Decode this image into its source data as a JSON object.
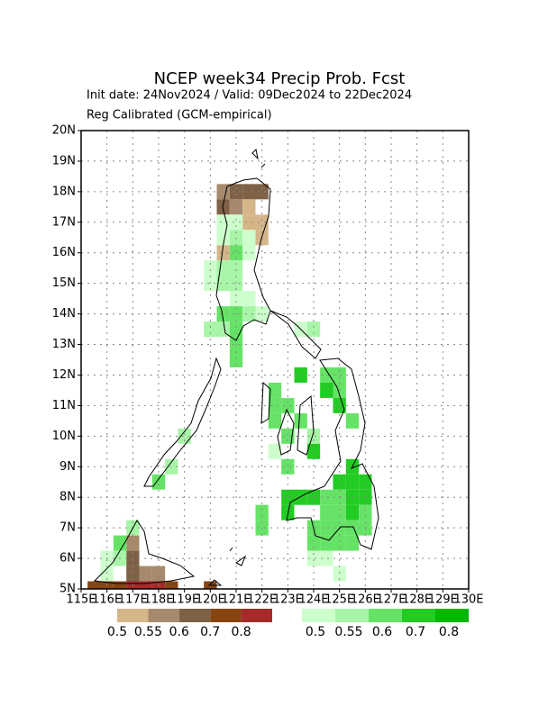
{
  "title": "NCEP week34 Precip Prob. Fcst",
  "subtitle": "Init date: 24Nov2024 / Valid: 09Dec2024 to 22Dec2024",
  "note": "Reg Calibrated (GCM-empirical)",
  "map": {
    "xlim": [
      115,
      130
    ],
    "ylim": [
      5,
      20
    ],
    "xticks": [
      {
        "value": 115,
        "label": "115E"
      },
      {
        "value": 116,
        "label": "116E"
      },
      {
        "value": 117,
        "label": "117E"
      },
      {
        "value": 118,
        "label": "118E"
      },
      {
        "value": 119,
        "label": "119E"
      },
      {
        "value": 120,
        "label": "120E"
      },
      {
        "value": 121,
        "label": "121E"
      },
      {
        "value": 122,
        "label": "122E"
      },
      {
        "value": 123,
        "label": "123E"
      },
      {
        "value": 124,
        "label": "124E"
      },
      {
        "value": 125,
        "label": "125E"
      },
      {
        "value": 126,
        "label": "126E"
      },
      {
        "value": 127,
        "label": "127E"
      },
      {
        "value": 128,
        "label": "128E"
      },
      {
        "value": 129,
        "label": "129E"
      },
      {
        "value": 130,
        "label": "130E"
      }
    ],
    "yticks": [
      {
        "value": 5,
        "label": "5N"
      },
      {
        "value": 6,
        "label": "6N"
      },
      {
        "value": 7,
        "label": "7N"
      },
      {
        "value": 8,
        "label": "8N"
      },
      {
        "value": 9,
        "label": "9N"
      },
      {
        "value": 10,
        "label": "10N"
      },
      {
        "value": 11,
        "label": "11N"
      },
      {
        "value": 12,
        "label": "12N"
      },
      {
        "value": 13,
        "label": "13N"
      },
      {
        "value": 14,
        "label": "14N"
      },
      {
        "value": 15,
        "label": "15N"
      },
      {
        "value": 16,
        "label": "16N"
      },
      {
        "value": 17,
        "label": "17N"
      },
      {
        "value": 18,
        "label": "18N"
      },
      {
        "value": 19,
        "label": "19N"
      },
      {
        "value": 20,
        "label": "20N"
      }
    ],
    "grid": true,
    "below_cells": [
      [
        120.5,
        18,
        0.57
      ],
      [
        121,
        18,
        0.62
      ],
      [
        121.5,
        18,
        0.62
      ],
      [
        122,
        18,
        0.62
      ],
      [
        120.5,
        17.5,
        0.62
      ],
      [
        121,
        17.5,
        0.57
      ],
      [
        121.5,
        17.5,
        0.52
      ],
      [
        121.5,
        17,
        0.52
      ],
      [
        122,
        17,
        0.52
      ],
      [
        122,
        16.5,
        0.52
      ],
      [
        120.5,
        16,
        0.52
      ],
      [
        117,
        6.5,
        0.57
      ],
      [
        117,
        6,
        0.62
      ],
      [
        117,
        5.5,
        0.62
      ],
      [
        117.5,
        5.5,
        0.57
      ],
      [
        118,
        5.5,
        0.57
      ],
      [
        115.5,
        5,
        0.72
      ],
      [
        116,
        5,
        0.72
      ],
      [
        116.5,
        5,
        0.72
      ],
      [
        117,
        5,
        0.85
      ],
      [
        117.5,
        5,
        0.85
      ],
      [
        118,
        5,
        0.85
      ],
      [
        118.5,
        5,
        0.72
      ],
      [
        120,
        5,
        0.72
      ]
    ],
    "above_cells": [
      [
        120.5,
        17,
        0.52
      ],
      [
        121,
        17,
        0.52
      ],
      [
        120.5,
        16.5,
        0.52
      ],
      [
        121,
        16.5,
        0.57
      ],
      [
        121.5,
        16.5,
        0.52
      ],
      [
        121,
        16,
        0.62
      ],
      [
        121.5,
        16,
        0.52
      ],
      [
        120,
        15.5,
        0.52
      ],
      [
        120.5,
        15.5,
        0.57
      ],
      [
        121,
        15.5,
        0.57
      ],
      [
        120,
        15,
        0.52
      ],
      [
        120.5,
        15,
        0.57
      ],
      [
        121,
        15,
        0.57
      ],
      [
        121,
        14.5,
        0.52
      ],
      [
        121.5,
        14.5,
        0.52
      ],
      [
        120.5,
        14,
        0.62
      ],
      [
        121,
        14,
        0.62
      ],
      [
        121.5,
        14,
        0.57
      ],
      [
        122,
        14,
        0.52
      ],
      [
        120,
        13.5,
        0.57
      ],
      [
        120.5,
        13.5,
        0.57
      ],
      [
        121,
        13.5,
        0.62
      ],
      [
        123.5,
        13.5,
        0.52
      ],
      [
        124,
        13.5,
        0.57
      ],
      [
        121,
        13,
        0.62
      ],
      [
        121,
        12.5,
        0.62
      ],
      [
        123.5,
        12,
        0.75
      ],
      [
        124.5,
        12,
        0.62
      ],
      [
        125,
        12,
        0.62
      ],
      [
        122.5,
        11.5,
        0.62
      ],
      [
        124.5,
        11.5,
        0.75
      ],
      [
        125,
        11.5,
        0.62
      ],
      [
        122.5,
        11,
        0.62
      ],
      [
        123,
        11,
        0.62
      ],
      [
        125,
        11,
        0.75
      ],
      [
        122.5,
        10.5,
        0.62
      ],
      [
        123.5,
        10.5,
        0.62
      ],
      [
        125.5,
        10.5,
        0.62
      ],
      [
        119,
        10,
        0.57
      ],
      [
        123,
        10,
        0.62
      ],
      [
        124,
        10,
        0.57
      ],
      [
        122.5,
        9.5,
        0.52
      ],
      [
        124,
        9.5,
        0.75
      ],
      [
        118.5,
        9,
        0.57
      ],
      [
        123,
        9,
        0.62
      ],
      [
        125.5,
        9,
        0.75
      ],
      [
        118,
        8.5,
        0.62
      ],
      [
        125,
        8.5,
        0.75
      ],
      [
        125.5,
        8.5,
        0.75
      ],
      [
        126,
        8.5,
        0.75
      ],
      [
        123,
        8,
        0.75
      ],
      [
        123.5,
        8,
        0.75
      ],
      [
        124,
        8,
        0.75
      ],
      [
        124.5,
        8,
        0.62
      ],
      [
        125,
        8,
        0.62
      ],
      [
        125.5,
        8,
        0.75
      ],
      [
        126,
        8,
        0.75
      ],
      [
        122,
        7.5,
        0.62
      ],
      [
        123,
        7.5,
        0.75
      ],
      [
        124.5,
        7.5,
        0.62
      ],
      [
        125,
        7.5,
        0.62
      ],
      [
        125.5,
        7.5,
        0.75
      ],
      [
        126,
        7.5,
        0.62
      ],
      [
        117,
        7,
        0.57
      ],
      [
        122,
        7,
        0.62
      ],
      [
        124,
        7,
        0.62
      ],
      [
        124.5,
        7,
        0.62
      ],
      [
        125,
        7,
        0.62
      ],
      [
        125.5,
        7,
        0.62
      ],
      [
        126,
        7,
        0.62
      ],
      [
        116.5,
        6.5,
        0.62
      ],
      [
        124,
        6.5,
        0.62
      ],
      [
        124.5,
        6.5,
        0.62
      ],
      [
        125,
        6.5,
        0.62
      ],
      [
        125.5,
        6.5,
        0.62
      ],
      [
        116,
        6,
        0.52
      ],
      [
        116.5,
        6,
        0.57
      ],
      [
        124,
        6,
        0.52
      ],
      [
        124.5,
        6,
        0.52
      ],
      [
        116,
        5.5,
        0.52
      ],
      [
        125,
        5.5,
        0.52
      ]
    ]
  },
  "legend_below": {
    "ticks": [
      0.5,
      0.55,
      0.6,
      0.7,
      0.8
    ],
    "colors": [
      "#d5b689",
      "#a78a6d",
      "#7e6146",
      "#874512",
      "#a52a2a"
    ]
  },
  "legend_above": {
    "ticks": [
      0.5,
      0.55,
      0.6,
      0.7,
      0.8
    ],
    "colors": [
      "#ccffcc",
      "#a8f5a8",
      "#66e366",
      "#22cc22",
      "#00b800"
    ]
  }
}
